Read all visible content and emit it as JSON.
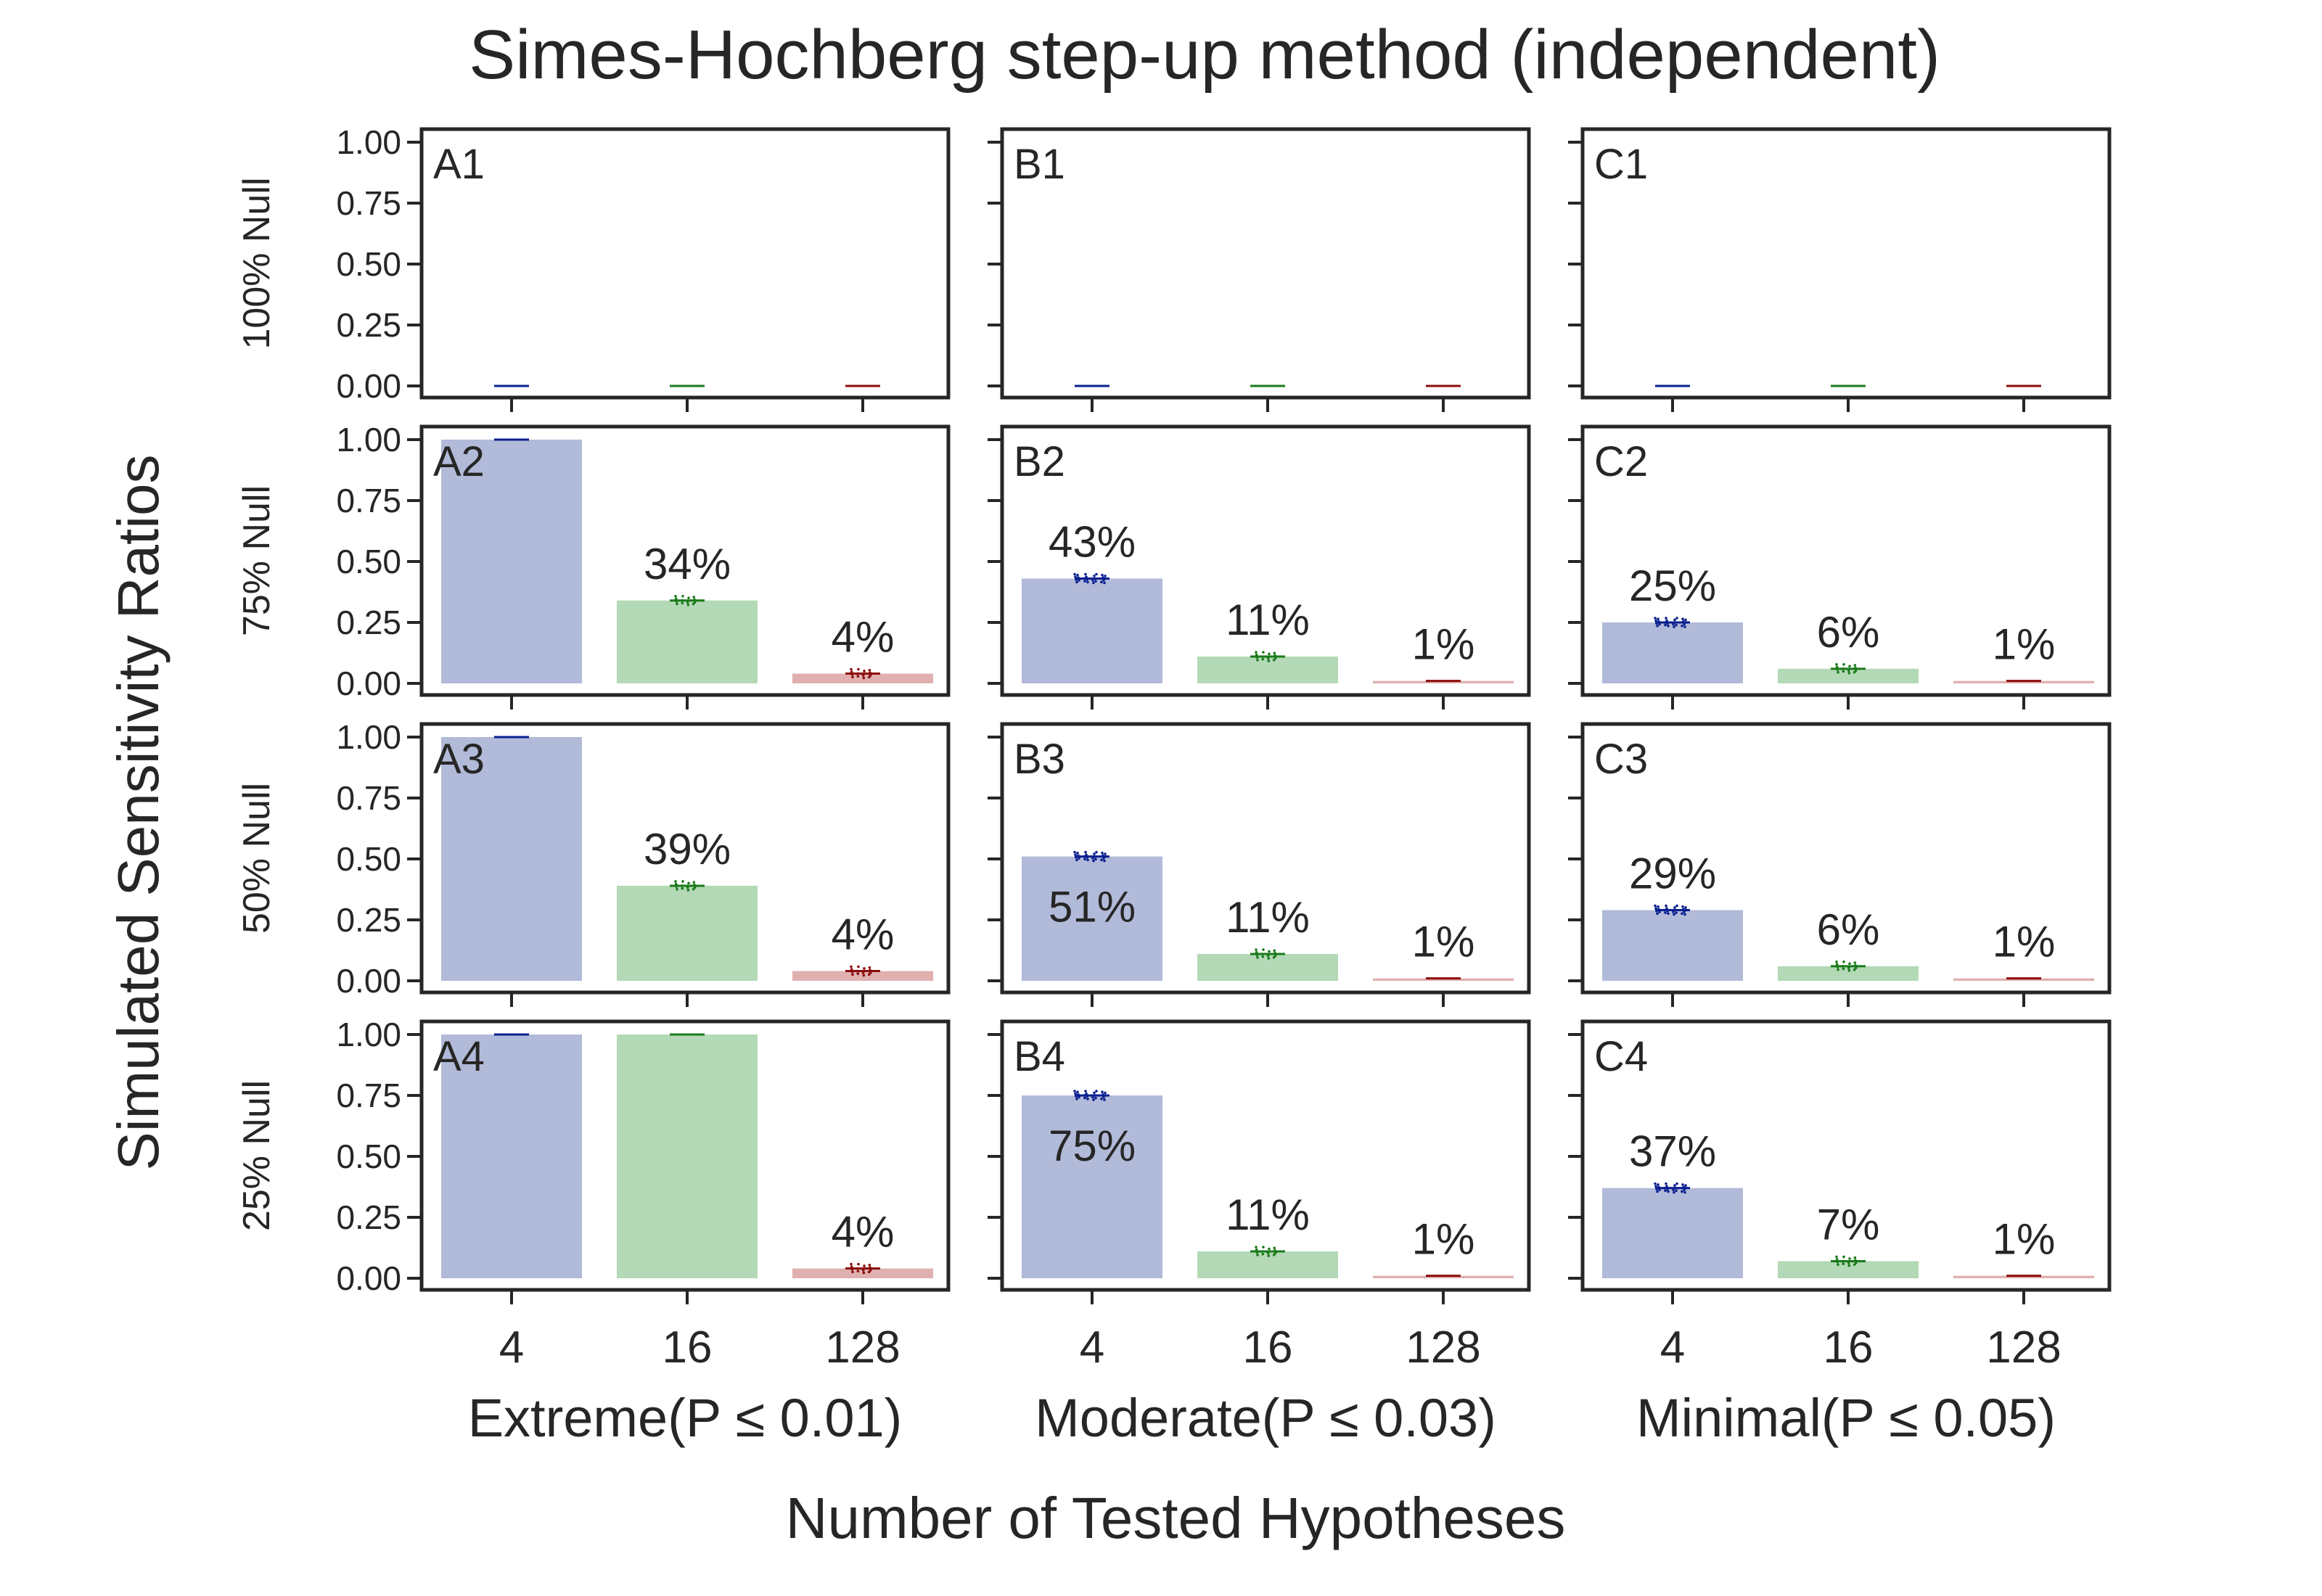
{
  "figure": {
    "title": "Simes-Hochberg step-up method (independent)",
    "ylabel": "Simulated Sensitivity Ratios",
    "xlabel": "Number of Tested Hypotheses",
    "row_labels": [
      "100% Null",
      "75% Null",
      "50% Null",
      "25% Null"
    ],
    "column_labels": [
      "Extreme(P ≤ 0.01)",
      "Moderate(P ≤ 0.03)",
      "Minimal(P ≤ 0.05)"
    ],
    "categories": [
      "4",
      "16",
      "128"
    ],
    "y_ticks": [
      "0.00",
      "0.25",
      "0.50",
      "0.75",
      "1.00"
    ],
    "bar_colors": [
      "#b2bad9",
      "#b3d9b6",
      "#e0b0b0"
    ],
    "point_colors": [
      "#0a1f8f",
      "#1a7a1a",
      "#8b0d0d"
    ]
  },
  "chart_data": [
    {
      "type": "bar",
      "panel": "A1",
      "categories": [
        "4",
        "16",
        "128"
      ],
      "values": [
        0.0,
        0.0,
        0.0
      ],
      "labels": [
        "",
        "",
        ""
      ],
      "ylim": [
        0,
        1
      ]
    },
    {
      "type": "bar",
      "panel": "B1",
      "categories": [
        "4",
        "16",
        "128"
      ],
      "values": [
        0.0,
        0.0,
        0.0
      ],
      "labels": [
        "",
        "",
        ""
      ],
      "ylim": [
        0,
        1
      ]
    },
    {
      "type": "bar",
      "panel": "C1",
      "categories": [
        "4",
        "16",
        "128"
      ],
      "values": [
        0.0,
        0.0,
        0.0
      ],
      "labels": [
        "",
        "",
        ""
      ],
      "ylim": [
        0,
        1
      ]
    },
    {
      "type": "bar",
      "panel": "A2",
      "categories": [
        "4",
        "16",
        "128"
      ],
      "values": [
        1.0,
        0.34,
        0.04
      ],
      "labels": [
        "",
        "34%",
        "4%"
      ],
      "ylim": [
        0,
        1
      ]
    },
    {
      "type": "bar",
      "panel": "B2",
      "categories": [
        "4",
        "16",
        "128"
      ],
      "values": [
        0.43,
        0.11,
        0.01
      ],
      "labels": [
        "43%",
        "11%",
        "1%"
      ],
      "ylim": [
        0,
        1
      ]
    },
    {
      "type": "bar",
      "panel": "C2",
      "categories": [
        "4",
        "16",
        "128"
      ],
      "values": [
        0.25,
        0.06,
        0.01
      ],
      "labels": [
        "25%",
        "6%",
        "1%"
      ],
      "ylim": [
        0,
        1
      ]
    },
    {
      "type": "bar",
      "panel": "A3",
      "categories": [
        "4",
        "16",
        "128"
      ],
      "values": [
        1.0,
        0.39,
        0.04
      ],
      "labels": [
        "",
        "39%",
        "4%"
      ],
      "ylim": [
        0,
        1
      ]
    },
    {
      "type": "bar",
      "panel": "B3",
      "categories": [
        "4",
        "16",
        "128"
      ],
      "values": [
        0.51,
        0.11,
        0.01
      ],
      "labels": [
        "51%",
        "11%",
        "1%"
      ],
      "ylim": [
        0,
        1
      ]
    },
    {
      "type": "bar",
      "panel": "C3",
      "categories": [
        "4",
        "16",
        "128"
      ],
      "values": [
        0.29,
        0.06,
        0.01
      ],
      "labels": [
        "29%",
        "6%",
        "1%"
      ],
      "ylim": [
        0,
        1
      ]
    },
    {
      "type": "bar",
      "panel": "A4",
      "categories": [
        "4",
        "16",
        "128"
      ],
      "values": [
        1.0,
        1.0,
        0.04
      ],
      "labels": [
        "",
        "",
        "4%"
      ],
      "ylim": [
        0,
        1
      ]
    },
    {
      "type": "bar",
      "panel": "B4",
      "categories": [
        "4",
        "16",
        "128"
      ],
      "values": [
        0.75,
        0.11,
        0.01
      ],
      "labels": [
        "75%",
        "11%",
        "1%"
      ],
      "ylim": [
        0,
        1
      ]
    },
    {
      "type": "bar",
      "panel": "C4",
      "categories": [
        "4",
        "16",
        "128"
      ],
      "values": [
        0.37,
        0.07,
        0.01
      ],
      "labels": [
        "37%",
        "7%",
        "1%"
      ],
      "ylim": [
        0,
        1
      ]
    }
  ]
}
